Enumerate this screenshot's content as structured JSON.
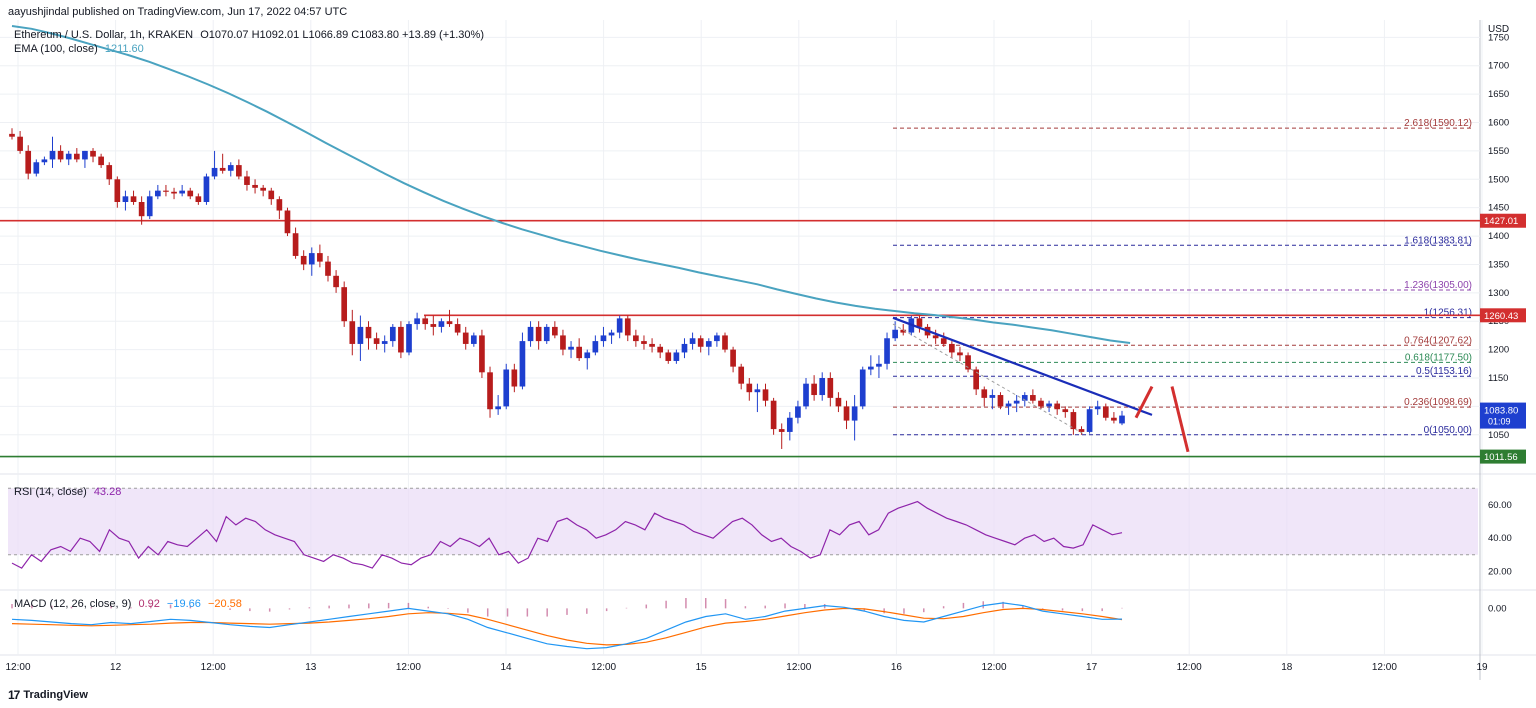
{
  "publisher_line": "aayushjindal published on TradingView.com, Jun 17, 2022 04:57 UTC",
  "legend": {
    "symbol": "Ethereum / U.S. Dollar, 1h, KRAKEN",
    "ohlc": "O1070.07 H1092.01 L1066.89 C1083.80 +13.89 (+1.30%)",
    "ema_label": "EMA (100, close)",
    "ema_value": "1211.60",
    "rsi_label": "RSI (14, close)",
    "rsi_value": "43.28",
    "macd_label": "MACD (12, 26, close, 9)",
    "macd_value1": "0.92",
    "macd_value2": "−19.66",
    "macd_value3": "−20.58"
  },
  "price_axis_unit": "USD",
  "logo_text": "TradingView",
  "colors": {
    "up": "#1e3fcf",
    "down": "#b71c1c",
    "ema": "#4aa3c0",
    "resistance": "#d32f2f",
    "support": "#2e7d32",
    "trendline": "#1a2db8",
    "fib_red": "#a33b3b",
    "fib_blue": "#2a2a9c",
    "fib_purple": "#8e44ad",
    "fib_green": "#2e8b57",
    "rsi_band": "#e9dcf7",
    "rsi_line": "#8e24aa",
    "macd_line": "#2196f3",
    "signal_line": "#ff6d00",
    "hist": "#b0306e"
  },
  "chart_data": [
    {
      "type": "candlestick",
      "title": "Ethereum / U.S. Dollar, 1h, KRAKEN",
      "xlabel": "",
      "ylabel": "USD",
      "ylim": [
        995,
        1770
      ],
      "y_ticks": [
        1050,
        1100,
        1150,
        1200,
        1250,
        1300,
        1350,
        1400,
        1450,
        1500,
        1550,
        1600,
        1650,
        1700,
        1750
      ],
      "x_tick_labels": [
        "12:00",
        "12",
        "12:00",
        "13",
        "12:00",
        "14",
        "12:00",
        "15",
        "12:00",
        "16",
        "12:00",
        "17",
        "12:00",
        "18",
        "12:00",
        "19"
      ],
      "grid": true,
      "candles": [
        [
          1580,
          1590,
          1570,
          1575
        ],
        [
          1575,
          1585,
          1545,
          1550
        ],
        [
          1550,
          1560,
          1500,
          1510
        ],
        [
          1510,
          1535,
          1505,
          1530
        ],
        [
          1530,
          1540,
          1525,
          1535
        ],
        [
          1535,
          1575,
          1520,
          1550
        ],
        [
          1550,
          1560,
          1530,
          1535
        ],
        [
          1535,
          1550,
          1525,
          1545
        ],
        [
          1545,
          1555,
          1530,
          1535
        ],
        [
          1535,
          1550,
          1520,
          1550
        ],
        [
          1550,
          1555,
          1530,
          1540
        ],
        [
          1540,
          1545,
          1520,
          1525
        ],
        [
          1525,
          1530,
          1490,
          1500
        ],
        [
          1500,
          1505,
          1450,
          1460
        ],
        [
          1460,
          1480,
          1445,
          1470
        ],
        [
          1470,
          1480,
          1455,
          1460
        ],
        [
          1460,
          1470,
          1420,
          1435
        ],
        [
          1435,
          1480,
          1430,
          1470
        ],
        [
          1470,
          1490,
          1465,
          1480
        ],
        [
          1480,
          1490,
          1470,
          1478
        ],
        [
          1478,
          1485,
          1465,
          1475
        ],
        [
          1475,
          1490,
          1470,
          1480
        ],
        [
          1480,
          1485,
          1465,
          1470
        ],
        [
          1470,
          1475,
          1455,
          1460
        ],
        [
          1460,
          1510,
          1455,
          1505
        ],
        [
          1505,
          1550,
          1500,
          1520
        ],
        [
          1520,
          1545,
          1510,
          1515
        ],
        [
          1515,
          1530,
          1505,
          1525
        ],
        [
          1525,
          1535,
          1500,
          1505
        ],
        [
          1505,
          1515,
          1480,
          1490
        ],
        [
          1490,
          1500,
          1475,
          1485
        ],
        [
          1485,
          1490,
          1470,
          1480
        ],
        [
          1480,
          1485,
          1455,
          1465
        ],
        [
          1465,
          1470,
          1430,
          1445
        ],
        [
          1445,
          1450,
          1400,
          1405
        ],
        [
          1405,
          1415,
          1360,
          1365
        ],
        [
          1365,
          1375,
          1340,
          1350
        ],
        [
          1350,
          1380,
          1330,
          1370
        ],
        [
          1370,
          1385,
          1345,
          1355
        ],
        [
          1355,
          1365,
          1320,
          1330
        ],
        [
          1330,
          1340,
          1300,
          1310
        ],
        [
          1310,
          1320,
          1240,
          1250
        ],
        [
          1250,
          1270,
          1190,
          1210
        ],
        [
          1210,
          1260,
          1180,
          1240
        ],
        [
          1240,
          1250,
          1200,
          1220
        ],
        [
          1220,
          1230,
          1200,
          1210
        ],
        [
          1210,
          1225,
          1195,
          1215
        ],
        [
          1215,
          1245,
          1205,
          1240
        ],
        [
          1240,
          1250,
          1185,
          1195
        ],
        [
          1195,
          1250,
          1190,
          1245
        ],
        [
          1245,
          1265,
          1235,
          1255
        ],
        [
          1255,
          1260,
          1235,
          1245
        ],
        [
          1245,
          1260,
          1225,
          1240
        ],
        [
          1240,
          1255,
          1230,
          1250
        ],
        [
          1250,
          1270,
          1240,
          1245
        ],
        [
          1245,
          1255,
          1225,
          1230
        ],
        [
          1230,
          1240,
          1200,
          1210
        ],
        [
          1210,
          1230,
          1205,
          1225
        ],
        [
          1225,
          1235,
          1150,
          1160
        ],
        [
          1160,
          1170,
          1080,
          1095
        ],
        [
          1095,
          1120,
          1085,
          1100
        ],
        [
          1100,
          1175,
          1095,
          1165
        ],
        [
          1165,
          1175,
          1125,
          1135
        ],
        [
          1135,
          1230,
          1130,
          1215
        ],
        [
          1215,
          1250,
          1205,
          1240
        ],
        [
          1240,
          1250,
          1200,
          1215
        ],
        [
          1215,
          1245,
          1210,
          1240
        ],
        [
          1240,
          1250,
          1220,
          1225
        ],
        [
          1225,
          1235,
          1190,
          1200
        ],
        [
          1200,
          1215,
          1185,
          1205
        ],
        [
          1205,
          1220,
          1180,
          1185
        ],
        [
          1185,
          1200,
          1165,
          1195
        ],
        [
          1195,
          1225,
          1190,
          1215
        ],
        [
          1215,
          1240,
          1205,
          1225
        ],
        [
          1225,
          1235,
          1210,
          1230
        ],
        [
          1230,
          1260,
          1220,
          1255
        ],
        [
          1255,
          1260,
          1215,
          1225
        ],
        [
          1225,
          1235,
          1205,
          1215
        ],
        [
          1215,
          1225,
          1200,
          1210
        ],
        [
          1210,
          1220,
          1195,
          1205
        ],
        [
          1205,
          1210,
          1185,
          1195
        ],
        [
          1195,
          1200,
          1175,
          1180
        ],
        [
          1180,
          1200,
          1175,
          1195
        ],
        [
          1195,
          1220,
          1185,
          1210
        ],
        [
          1210,
          1230,
          1200,
          1220
        ],
        [
          1220,
          1225,
          1195,
          1205
        ],
        [
          1205,
          1220,
          1190,
          1215
        ],
        [
          1215,
          1230,
          1205,
          1225
        ],
        [
          1225,
          1230,
          1195,
          1200
        ],
        [
          1200,
          1205,
          1160,
          1170
        ],
        [
          1170,
          1175,
          1130,
          1140
        ],
        [
          1140,
          1150,
          1110,
          1125
        ],
        [
          1125,
          1140,
          1090,
          1130
        ],
        [
          1130,
          1140,
          1100,
          1110
        ],
        [
          1110,
          1115,
          1050,
          1060
        ],
        [
          1060,
          1070,
          1025,
          1055
        ],
        [
          1055,
          1090,
          1040,
          1080
        ],
        [
          1080,
          1110,
          1070,
          1100
        ],
        [
          1100,
          1150,
          1095,
          1140
        ],
        [
          1140,
          1155,
          1110,
          1120
        ],
        [
          1120,
          1160,
          1110,
          1150
        ],
        [
          1150,
          1160,
          1100,
          1115
        ],
        [
          1115,
          1125,
          1090,
          1100
        ],
        [
          1100,
          1110,
          1060,
          1075
        ],
        [
          1075,
          1120,
          1040,
          1100
        ],
        [
          1100,
          1170,
          1095,
          1165
        ],
        [
          1165,
          1190,
          1155,
          1170
        ],
        [
          1170,
          1190,
          1150,
          1175
        ],
        [
          1175,
          1230,
          1165,
          1220
        ],
        [
          1220,
          1250,
          1215,
          1235
        ],
        [
          1235,
          1245,
          1225,
          1230
        ],
        [
          1230,
          1260,
          1225,
          1255
        ],
        [
          1255,
          1260,
          1230,
          1240
        ],
        [
          1240,
          1245,
          1220,
          1225
        ],
        [
          1225,
          1235,
          1210,
          1220
        ],
        [
          1220,
          1230,
          1205,
          1210
        ],
        [
          1210,
          1215,
          1185,
          1195
        ],
        [
          1195,
          1205,
          1180,
          1190
        ],
        [
          1190,
          1195,
          1160,
          1165
        ],
        [
          1165,
          1170,
          1120,
          1130
        ],
        [
          1130,
          1135,
          1100,
          1115
        ],
        [
          1115,
          1130,
          1095,
          1120
        ],
        [
          1120,
          1125,
          1095,
          1100
        ],
        [
          1100,
          1110,
          1085,
          1105
        ],
        [
          1105,
          1120,
          1090,
          1110
        ],
        [
          1110,
          1125,
          1100,
          1120
        ],
        [
          1120,
          1130,
          1105,
          1110
        ],
        [
          1110,
          1115,
          1095,
          1100
        ],
        [
          1100,
          1110,
          1090,
          1105
        ],
        [
          1105,
          1110,
          1085,
          1095
        ],
        [
          1095,
          1100,
          1080,
          1090
        ],
        [
          1090,
          1095,
          1050,
          1060
        ],
        [
          1060,
          1065,
          1050,
          1055
        ],
        [
          1055,
          1100,
          1052,
          1095
        ],
        [
          1095,
          1110,
          1085,
          1100
        ],
        [
          1100,
          1105,
          1075,
          1080
        ],
        [
          1080,
          1090,
          1070,
          1075
        ],
        [
          1070,
          1092,
          1066.89,
          1083.8
        ]
      ],
      "ema_100": [
        1770,
        1765,
        1757,
        1748,
        1738,
        1728,
        1718,
        1707,
        1694,
        1681,
        1667,
        1652,
        1636,
        1619,
        1601,
        1583,
        1564,
        1546,
        1528,
        1510,
        1493,
        1477,
        1462,
        1448,
        1435,
        1423,
        1412,
        1402,
        1392,
        1383,
        1374,
        1366,
        1358,
        1351,
        1344,
        1336,
        1329,
        1322,
        1315,
        1306,
        1298,
        1290,
        1283,
        1277,
        1272,
        1268,
        1264,
        1261,
        1257,
        1253,
        1248,
        1244,
        1239,
        1234,
        1228,
        1222,
        1216,
        1211.6
      ],
      "ema_start_candle": 0,
      "ema_end_candle": 138,
      "horizontal_levels": [
        {
          "label": "1427.01",
          "value": 1427.01,
          "kind": "resistance"
        },
        {
          "label": "1260.43",
          "value": 1260.43,
          "kind": "resistance"
        },
        {
          "label": "1011.56",
          "value": 1011.56,
          "kind": "support"
        }
      ],
      "last_price_label": "1083.80",
      "countdown_label": "01:09",
      "fib_levels": [
        {
          "label": "2.618(1590.12)",
          "value": 1590.12,
          "color": "fib_red"
        },
        {
          "label": "1.618(1383.81)",
          "value": 1383.81,
          "color": "fib_blue"
        },
        {
          "label": "1.236(1305.00)",
          "value": 1305.0,
          "color": "fib_purple"
        },
        {
          "label": "1(1256.31)",
          "value": 1256.31,
          "color": "fib_blue"
        },
        {
          "label": "0.764(1207.62)",
          "value": 1207.62,
          "color": "fib_red"
        },
        {
          "label": "0.618(1177.50)",
          "value": 1177.5,
          "color": "fib_green"
        },
        {
          "label": "0.5(1153.16)",
          "value": 1153.16,
          "color": "fib_blue"
        },
        {
          "label": "0.236(1098.69)",
          "value": 1098.69,
          "color": "fib_red"
        },
        {
          "label": "0(1050.00)",
          "value": 1050.0,
          "color": "fib_blue"
        }
      ],
      "trendline": {
        "from": [
          1256,
          111
        ],
        "to": [
          1085,
          144
        ]
      },
      "projection_up": {
        "from": [
          1070,
          141
        ],
        "to": [
          1135,
          145
        ]
      },
      "projection_down": {
        "from": [
          1135,
          146
        ],
        "to": [
          1020,
          152
        ]
      }
    },
    {
      "type": "line",
      "title": "RSI (14, close)",
      "ylim": [
        10,
        75
      ],
      "y_ticks": [
        20,
        40,
        60
      ],
      "band": [
        30,
        70
      ],
      "values": [
        25,
        22,
        30,
        26,
        33,
        35,
        32,
        40,
        38,
        32,
        45,
        40,
        38,
        28,
        35,
        30,
        38,
        36,
        35,
        40,
        45,
        38,
        53,
        48,
        52,
        50,
        45,
        42,
        40,
        38,
        30,
        28,
        26,
        30,
        28,
        25,
        24,
        22,
        30,
        28,
        25,
        24,
        28,
        30,
        38,
        35,
        40,
        38,
        35,
        40,
        30,
        32,
        25,
        28,
        40,
        38,
        50,
        52,
        48,
        45,
        40,
        42,
        45,
        50,
        48,
        45,
        55,
        52,
        50,
        48,
        44,
        42,
        40,
        45,
        50,
        52,
        48,
        42,
        38,
        40,
        35,
        32,
        28,
        30,
        45,
        42,
        48,
        50,
        42,
        45,
        55,
        58,
        60,
        62,
        58,
        55,
        52,
        50,
        48,
        45,
        42,
        40,
        38,
        36,
        40,
        42,
        38,
        40,
        35,
        34,
        36,
        48,
        45,
        42,
        43.28
      ]
    },
    {
      "type": "line",
      "title": "MACD (12, 26, close, 9)",
      "ylim": [
        -80,
        30
      ],
      "y_ticks": [
        0
      ],
      "macd": [
        -20,
        -22,
        -25,
        -28,
        -30,
        -26,
        -28,
        -24,
        -20,
        -22,
        -26,
        -30,
        -33,
        -35,
        -30,
        -25,
        -20,
        -15,
        -10,
        -5,
        0,
        -5,
        -10,
        -20,
        -35,
        -45,
        -55,
        -65,
        -70,
        -74,
        -72,
        -65,
        -55,
        -40,
        -25,
        -15,
        -10,
        -20,
        -15,
        -5,
        0,
        5,
        2,
        -5,
        -15,
        -22,
        -25,
        -15,
        -5,
        5,
        10,
        5,
        -5,
        -10,
        -15,
        -20,
        -19.66
      ],
      "signal": [
        -28,
        -29,
        -30,
        -31,
        -32,
        -31,
        -30,
        -29,
        -27,
        -26,
        -26,
        -27,
        -28,
        -29,
        -28,
        -27,
        -25,
        -22,
        -19,
        -15,
        -10,
        -8,
        -9,
        -12,
        -20,
        -30,
        -40,
        -50,
        -58,
        -64,
        -67,
        -66,
        -62,
        -54,
        -44,
        -34,
        -27,
        -24,
        -20,
        -14,
        -8,
        -3,
        0,
        -1,
        -6,
        -12,
        -18,
        -19,
        -15,
        -8,
        -2,
        0,
        -2,
        -6,
        -10,
        -15,
        -20.58
      ]
    }
  ]
}
